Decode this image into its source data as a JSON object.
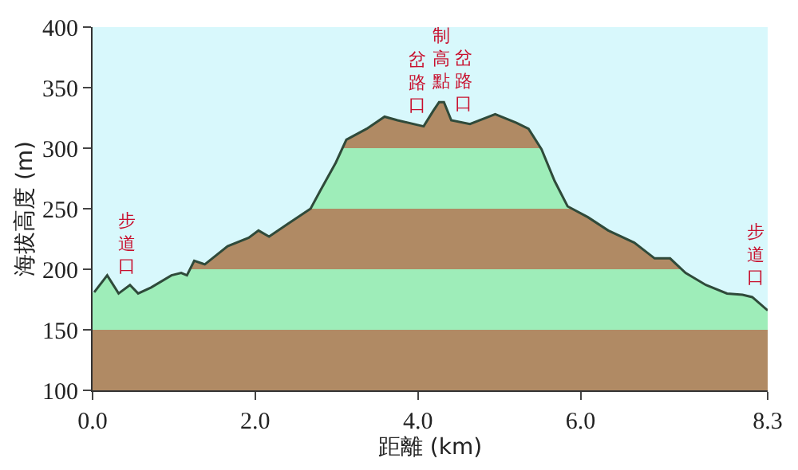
{
  "chart_data": {
    "type": "area",
    "xlabel": "距離 (km)",
    "ylabel": "海拔高度 (m)",
    "x": [
      0.02,
      0.18,
      0.32,
      0.46,
      0.56,
      0.72,
      0.97,
      1.09,
      1.16,
      1.25,
      1.38,
      1.66,
      1.92,
      2.04,
      2.17,
      2.39,
      2.68,
      2.8,
      2.99,
      3.12,
      3.37,
      3.59,
      3.75,
      4.07,
      4.19,
      4.26,
      4.32,
      4.41,
      4.64,
      4.95,
      5.21,
      5.36,
      5.52,
      5.68,
      5.84,
      6.09,
      6.34,
      6.66,
      6.91,
      7.1,
      7.29,
      7.54,
      7.8,
      7.99,
      8.11,
      8.3
    ],
    "series": [
      {
        "color": "#2f4a3a",
        "values": [
          181,
          195,
          180,
          187,
          180,
          185,
          195,
          197,
          195,
          207,
          204,
          219,
          226,
          232,
          227,
          237,
          250,
          265,
          288,
          307,
          316,
          326,
          323,
          318,
          331,
          338,
          338,
          323,
          320,
          328,
          321,
          316,
          299,
          273,
          252,
          243,
          232,
          222,
          209,
          209,
          197,
          187,
          180,
          179,
          177,
          166
        ]
      }
    ],
    "bands": [
      {
        "axis": "y",
        "from": 100,
        "to": 150,
        "color": "#b08a64"
      },
      {
        "axis": "y",
        "from": 150,
        "to": 200,
        "color": "#9eedb9"
      },
      {
        "axis": "y",
        "from": 200,
        "to": 250,
        "color": "#b08a64"
      },
      {
        "axis": "y",
        "from": 250,
        "to": 300,
        "color": "#9eedb9"
      },
      {
        "axis": "y",
        "from": 300,
        "to": 350,
        "color": "#b08a64"
      }
    ],
    "annotations": [
      {
        "text": "步道口",
        "x": 0.43,
        "y": 186
      },
      {
        "text": "岔路口",
        "x": 3.99,
        "y": 319
      },
      {
        "text": "制高點",
        "x": 4.27,
        "y": 338
      },
      {
        "text": "岔路口",
        "x": 4.57,
        "y": 320
      },
      {
        "text": "步道口",
        "x": 8.16,
        "y": 176
      }
    ],
    "xlim": [
      0,
      8.3
    ],
    "xticks": [
      {
        "value": 0,
        "label": "0.0"
      },
      {
        "value": 2,
        "label": "2.0"
      },
      {
        "value": 4,
        "label": "4.0"
      },
      {
        "value": 6,
        "label": "6.0"
      },
      {
        "value": 8.3,
        "label": "8.3"
      }
    ],
    "ylim": [
      100,
      400
    ],
    "yticks": [
      100,
      150,
      200,
      250,
      300,
      350,
      400
    ]
  }
}
